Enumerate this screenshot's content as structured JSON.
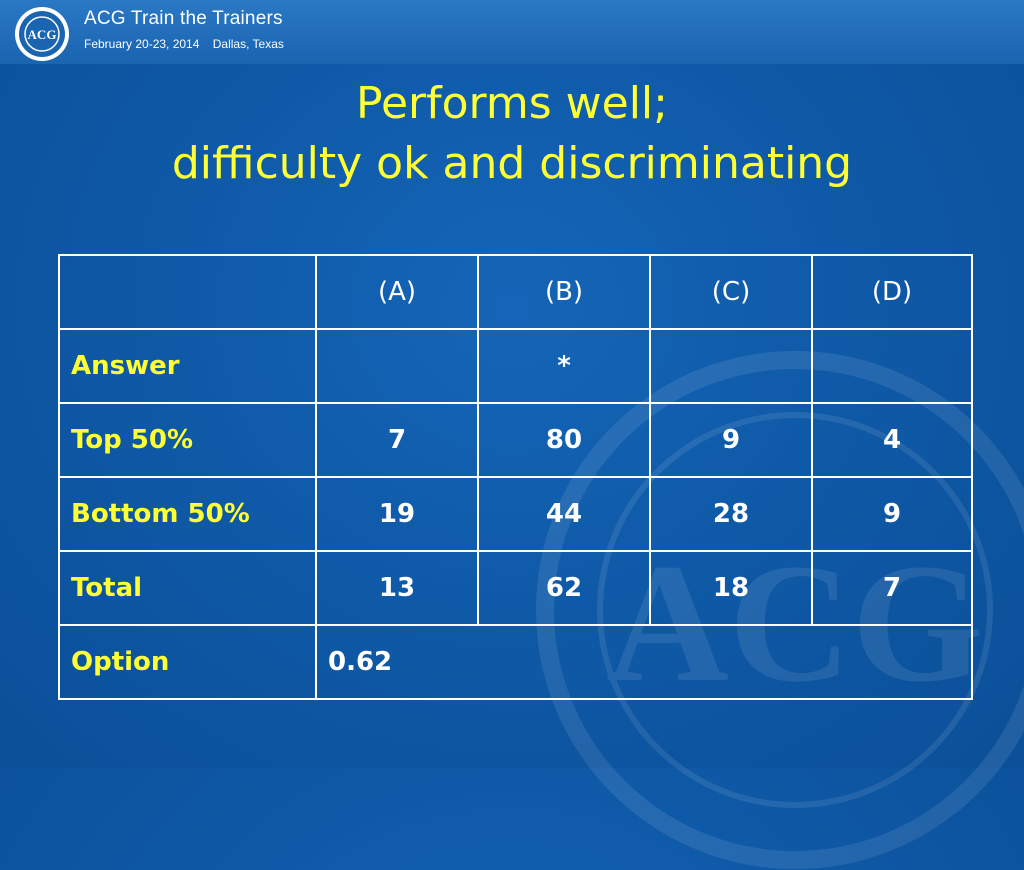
{
  "header": {
    "seal_text": "ACG",
    "title": "ACG Train the Trainers",
    "date": "February 20-23, 2014",
    "location": "Dallas, Texas"
  },
  "slide": {
    "title_line1": "Performs well;",
    "title_line2": "difficulty ok and discriminating"
  },
  "table": {
    "columns": [
      "",
      "(A)",
      "(B)",
      "(C)",
      "(D)"
    ],
    "rows": [
      {
        "label": "Answer",
        "cells": [
          "",
          "*",
          "",
          ""
        ]
      },
      {
        "label": "Top 50%",
        "cells": [
          "7",
          "80",
          "9",
          "4"
        ]
      },
      {
        "label": "Bottom 50%",
        "cells": [
          "19",
          "44",
          "28",
          "9"
        ]
      },
      {
        "label": "Total",
        "cells": [
          "13",
          "62",
          "18",
          "7"
        ]
      }
    ],
    "option_row": {
      "label": "Option",
      "value": "0.62"
    }
  },
  "colors": {
    "background": "#0f5aa8",
    "accent_yellow": "#ffff33",
    "table_lines": "#ffffff"
  }
}
